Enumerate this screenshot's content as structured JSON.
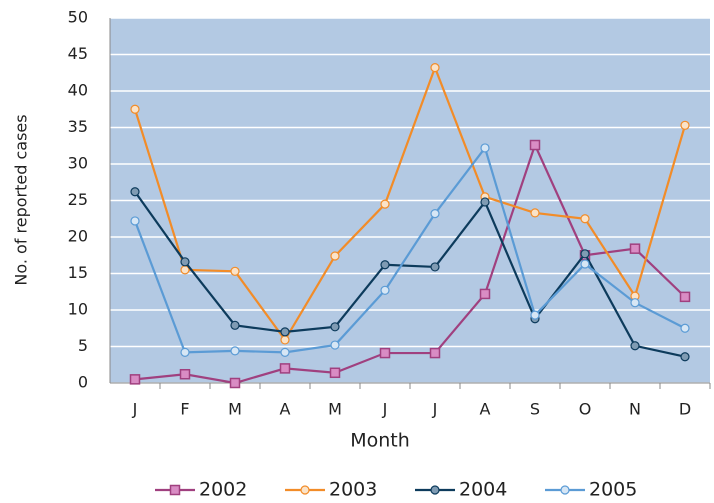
{
  "chart_data": {
    "type": "line",
    "x_label": "Month",
    "y_label": "No. of reported cases",
    "categories": [
      "J",
      "F",
      "M",
      "A",
      "M",
      "J",
      "J",
      "A",
      "S",
      "O",
      "N",
      "D"
    ],
    "ylim": [
      0,
      50
    ],
    "yticks": [
      0,
      5,
      10,
      15,
      20,
      25,
      30,
      35,
      40,
      45,
      50
    ],
    "grid": true,
    "background": "#b3c9e3",
    "legend": "bottom",
    "series": [
      {
        "name": "2002",
        "color": "#a0407f",
        "marker": "square",
        "marker_fill": "#d98cc4",
        "values": [
          0.5,
          1.2,
          0,
          2,
          1.4,
          4.1,
          4.1,
          12.2,
          32.6,
          17.5,
          18.4,
          11.8
        ]
      },
      {
        "name": "2003",
        "color": "#f28c28",
        "marker": "circle",
        "marker_fill": "#fbe3c8",
        "values": [
          37.5,
          15.5,
          15.3,
          5.9,
          17.4,
          24.5,
          43.2,
          25.5,
          23.3,
          22.5,
          11.9,
          35.3
        ]
      },
      {
        "name": "2004",
        "color": "#0d3b5c",
        "marker": "circle",
        "marker_fill": "#7f9bb3",
        "values": [
          26.2,
          16.6,
          7.9,
          7,
          7.7,
          16.2,
          15.9,
          24.8,
          8.8,
          17.7,
          5.1,
          3.6
        ]
      },
      {
        "name": "2005",
        "color": "#5b9bd5",
        "marker": "circle",
        "marker_fill": "#d6e6f5",
        "values": [
          22.2,
          4.2,
          4.4,
          4.2,
          5.2,
          12.7,
          23.2,
          32.2,
          9.3,
          16.3,
          11,
          7.5
        ]
      }
    ]
  }
}
